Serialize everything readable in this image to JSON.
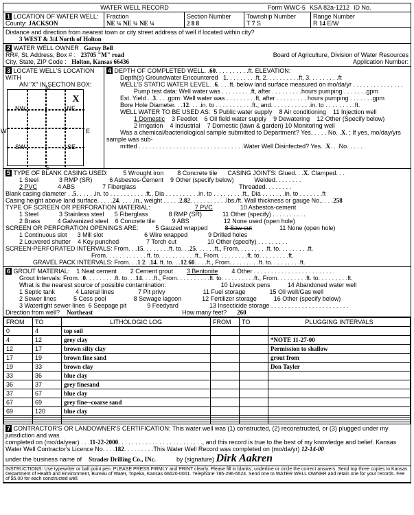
{
  "header": {
    "title": "WATER WELL RECORD",
    "form": "Form WWC-5",
    "ksa": "KSA 82a-1212",
    "idno": "ID No."
  },
  "loc": {
    "label": "LOCATION OF WATER WELL:",
    "county_lbl": "County:",
    "county": "JACKSON",
    "fraction": "Fraction",
    "ne1": "NE ¼",
    "ne2": "NE ¼",
    "ne3": "NE ¼",
    "section_lbl": "Section Number",
    "section": "2 8 8",
    "township_lbl": "Township Number",
    "township_t": "T",
    "township": "7",
    "township_s": "S",
    "range_lbl": "Range Number",
    "range_r": "R",
    "range": "14",
    "range_e": "E/W"
  },
  "dist": {
    "label": "Distance and direction from nearest town or city street address of well if located within city?",
    "val": "3 WEST & 3/4  North of Holton"
  },
  "owner": {
    "label": "WATER WELL OWNER",
    "name": "Garuy Bell",
    "rr_lbl": "RR#, St. Address, Box #",
    "rr": "23705 \"M\" road",
    "city_lbl": "City, State, ZIP Code",
    "city": "Holton, Kansas 66436",
    "board": "Board of Agriculture, Division of Water Resources",
    "appno": "Application Number:"
  },
  "locate": {
    "label": "LOCATE WELL'S LOCATION WITH",
    "sub": "AN \"X\" IN SECTION BOX:",
    "n": "N",
    "s": "S",
    "e": "E",
    "w": "W",
    "nw": "NW",
    "ne": "NE",
    "sw": "SW",
    "se": "SE",
    "x": "X"
  },
  "depth": {
    "label": "DEPTH OF COMPLETED WELL",
    "val": "60",
    "elev": "ft. ELEVATION:",
    "d1": "Depth(s) Groundwater Encountered",
    "d1a": "1",
    "d1b": "ft, 2",
    "d1c": "ft, 3",
    "d1d": "ft",
    "static": "WELL'S STATIC WATER LEVEL",
    "static_v": "6",
    "static_t": "ft. below land surface measured on mo/da/yr",
    "pump": "Pump test data:  Well water was",
    "pump_a": "ft, after",
    "pump_b": "hours pumping",
    "pump_c": "gpm",
    "est": "Est. Yield",
    "est_v": "3",
    "est_t": "gpm:  Well water was",
    "bore": "Bore Hole Diameter",
    "bore_v": "12",
    "bore_t": "in. to",
    "bore_f": "ft., and",
    "bore_i": "in. to",
    "bore_ff": "ft.",
    "use": "WELL WATER TO BE USED AS:",
    "u1": "1 Domestic",
    "u2": "2 Irrigation",
    "u3": "3 Feedlot",
    "u4": "4 Industrial",
    "u5": "5 Public water supply",
    "u6": "6 Oil field water supply",
    "u7": "7 Domestic (lawn & garden)",
    "u8": "8 Air conditioning",
    "u9": "9 Dewatering",
    "u10": "10 Monitoring well",
    "u11": "11 Injection well",
    "u12": "12 Other (Specify below)",
    "chem": "Was a chemical/bacteriological sample submitted to Department? Yes",
    "chem_no": "No",
    "chem_x": "X",
    "chem_t": "; If yes, mo/day/yrs sample was sub-",
    "mitted": "mitted",
    "disinfect": "Water Well Disinfected? Yes",
    "dis_x": "X",
    "dis_no": "No"
  },
  "casing": {
    "label": "TYPE OF BLANK CASING USED:",
    "c1": "1 Steel",
    "c2": "2 PVC",
    "c3": "3 RMP (SR)",
    "c4": "4 ABS",
    "c5": "5 Wrought iron",
    "c6": "6 Asbestos-Cement",
    "c7": "7 Fiberglass",
    "c8": "8 Concrete tile",
    "c9": "9 Other (specify below)",
    "joints": "CASING JOINTS: Glued",
    "jx": "X",
    "jw": "Welded",
    "jt": "Threaded",
    "jc": "Clamped",
    "dia": "Blank casing diameter",
    "dia_v": "5",
    "dia_t": "in. to",
    "dia_f": "ft., Dia",
    "dia_i": "in. to",
    "dia_ff": "ft., Dia",
    "dia_iii": "in. to",
    "dia_fff": "ft",
    "height": "Casing height above land surface",
    "height_v": "24",
    "height_t": "in., weight",
    "weight_v": "2.82",
    "weight_t": "lbs./ft. Wall thickness or gauge No.",
    "gauge": "258"
  },
  "screen": {
    "label": "TYPE OF SCREEN OR PERFORATION MATERIAL:",
    "s1": "1 Steel",
    "s2": "2 Brass",
    "s3": "3 Stainless steel",
    "s4": "4 Galvanized steel",
    "s5": "5 Fiberglass",
    "s6": "6 Concrete tile",
    "s7": "7 PVC",
    "s8": "8 RMP (SR)",
    "s9": "9 ABS",
    "s10": "10 Asbestos-cement",
    "s11": "11 Other (specify)",
    "s12": "12 None used (open hole)",
    "open": "SCREEN OR PERFORATION OPENINGS ARE:",
    "o1": "1 Continuous slot",
    "o2": "2 Louvered shutter",
    "o3": "3 Mill slot",
    "o4": "4 Key punched",
    "o5": "5 Gauzed wrapped",
    "o6": "6 Wire wrapped",
    "o7": "7 Torch cut",
    "o8": "8 Saw cut",
    "o9": "9 Drilled holes",
    "o10": "10 Other (specify)",
    "o11": "11 None (open hole)",
    "perf": "SCREEN-PERFORATED INTERVALS: From",
    "p1": "15",
    "p1t": "ft. to",
    "p2": "25",
    "p2t": "ft., From",
    "p3t": "ft. to",
    "p4t": "ft., From",
    "p5t": "ft. to",
    "p6t": "ft.",
    "from2": "From",
    "gravel": "GRAVEL PACK INTERVALS: From",
    "g1": "1 2",
    "g1t": "14",
    "g2": "12",
    "g2t": "60"
  },
  "grout": {
    "label": "GROUT MATERIAL:",
    "g1": "1 Neat cement",
    "g2": "2 Cement grout",
    "g3": "3 Bentonite",
    "g4": "4 Other",
    "int": "Grout Intervals: From",
    "i1": "0",
    "i1t": "ft. to",
    "i2": "14",
    "i2t": "ft., From",
    "contam": "What is the nearest source of possible contamination:",
    "c1": "1 Septic tank",
    "c2": "2 Sewer lines",
    "c3": "3 Watertight sewer lines",
    "c4": "4 Lateral lines",
    "c5": "5 Cess pool",
    "c6": "6 Seepage pit",
    "c7": "7 Pit privy",
    "c8": "8 Sewage lagoon",
    "c9": "9 Feedyard",
    "c10": "10 Livestock pens",
    "c11": "11 Fuel storage",
    "c12": "12 Fertilizer storage",
    "c13": "13 Insecticide storage",
    "c14": "14 Abandoned water well",
    "c15": "15 Oil well/Gas well",
    "c16": "16 Other (specify below)",
    "dir": "Direction from well?",
    "dir_v": "Northeast",
    "feet": "How many feet?",
    "feet_v": "260"
  },
  "log": {
    "h1": "FROM",
    "h2": "TO",
    "h3": "LITHOLOGIC LOG",
    "h4": "FROM",
    "h5": "TO",
    "h6": "PLUGGING INTERVALS",
    "rows": [
      {
        "f": "0",
        "t": "4",
        "l": "top soil",
        "n": ""
      },
      {
        "f": "4",
        "t": "12",
        "l": "grey clay",
        "n": "*NOTE 11-27-00"
      },
      {
        "f": "12",
        "t": "17",
        "l": "brown silty clay",
        "n": "Permission to shallow"
      },
      {
        "f": "17",
        "t": "19",
        "l": "brown fine sand",
        "n": "grout from"
      },
      {
        "f": "19",
        "t": "33",
        "l": "brown clay",
        "n": "Don Tayler"
      },
      {
        "f": "33",
        "t": "36",
        "l": "blue clay",
        "n": ""
      },
      {
        "f": "36",
        "t": "37",
        "l": "grey finesand",
        "n": ""
      },
      {
        "f": "37",
        "t": "67",
        "l": "blue clay",
        "n": ""
      },
      {
        "f": "67",
        "t": "69",
        "l": "grey fine--coarse sand",
        "n": ""
      },
      {
        "f": "69",
        "t": "120",
        "l": "blue clay",
        "n": ""
      },
      {
        "f": "",
        "t": "",
        "l": "",
        "n": ""
      },
      {
        "f": "",
        "t": "",
        "l": "",
        "n": ""
      },
      {
        "f": "",
        "t": "",
        "l": "",
        "n": ""
      },
      {
        "f": "",
        "t": "",
        "l": "",
        "n": ""
      }
    ]
  },
  "cert": {
    "label": "CONTRACTOR'S OR LANDOWNER'S CERTIFICATION: This water well was (1) constructed, (2) reconstructed, or (3) plugged under my jurisdiction and was",
    "l2": "completed on (mo/da/year)",
    "date": "11-22-2000",
    "l3": ", and this record is true to the best of my knowledge and belief. Kansas",
    "l4": "Water Well Contractor's Licence No.",
    "lic": "182",
    "l5": "This Water Well Record was completed on (mo/da/yr)",
    "compdate": "12-14-00",
    "l6": "under the business name of",
    "biz": "Strader Drilling Co., INc.",
    "l7": "by (signature)",
    "sig": "Dirk Aakren"
  },
  "inst": "INSTRUCTIONS: Use typewriter or ball point pen. PLEASE PRESS FIRMLY and PRINT clearly. Please fill in blanks, underline or circle the correct answers. Send top three copies to Kansas Department of Health and Environment, Bureau of Water, Topeka, Kansas 66620-0001. Telephone 785-296-5524. Send one to WATER WELL OWNER and retain one for your records. Fee of $5.00 for each constructed well."
}
